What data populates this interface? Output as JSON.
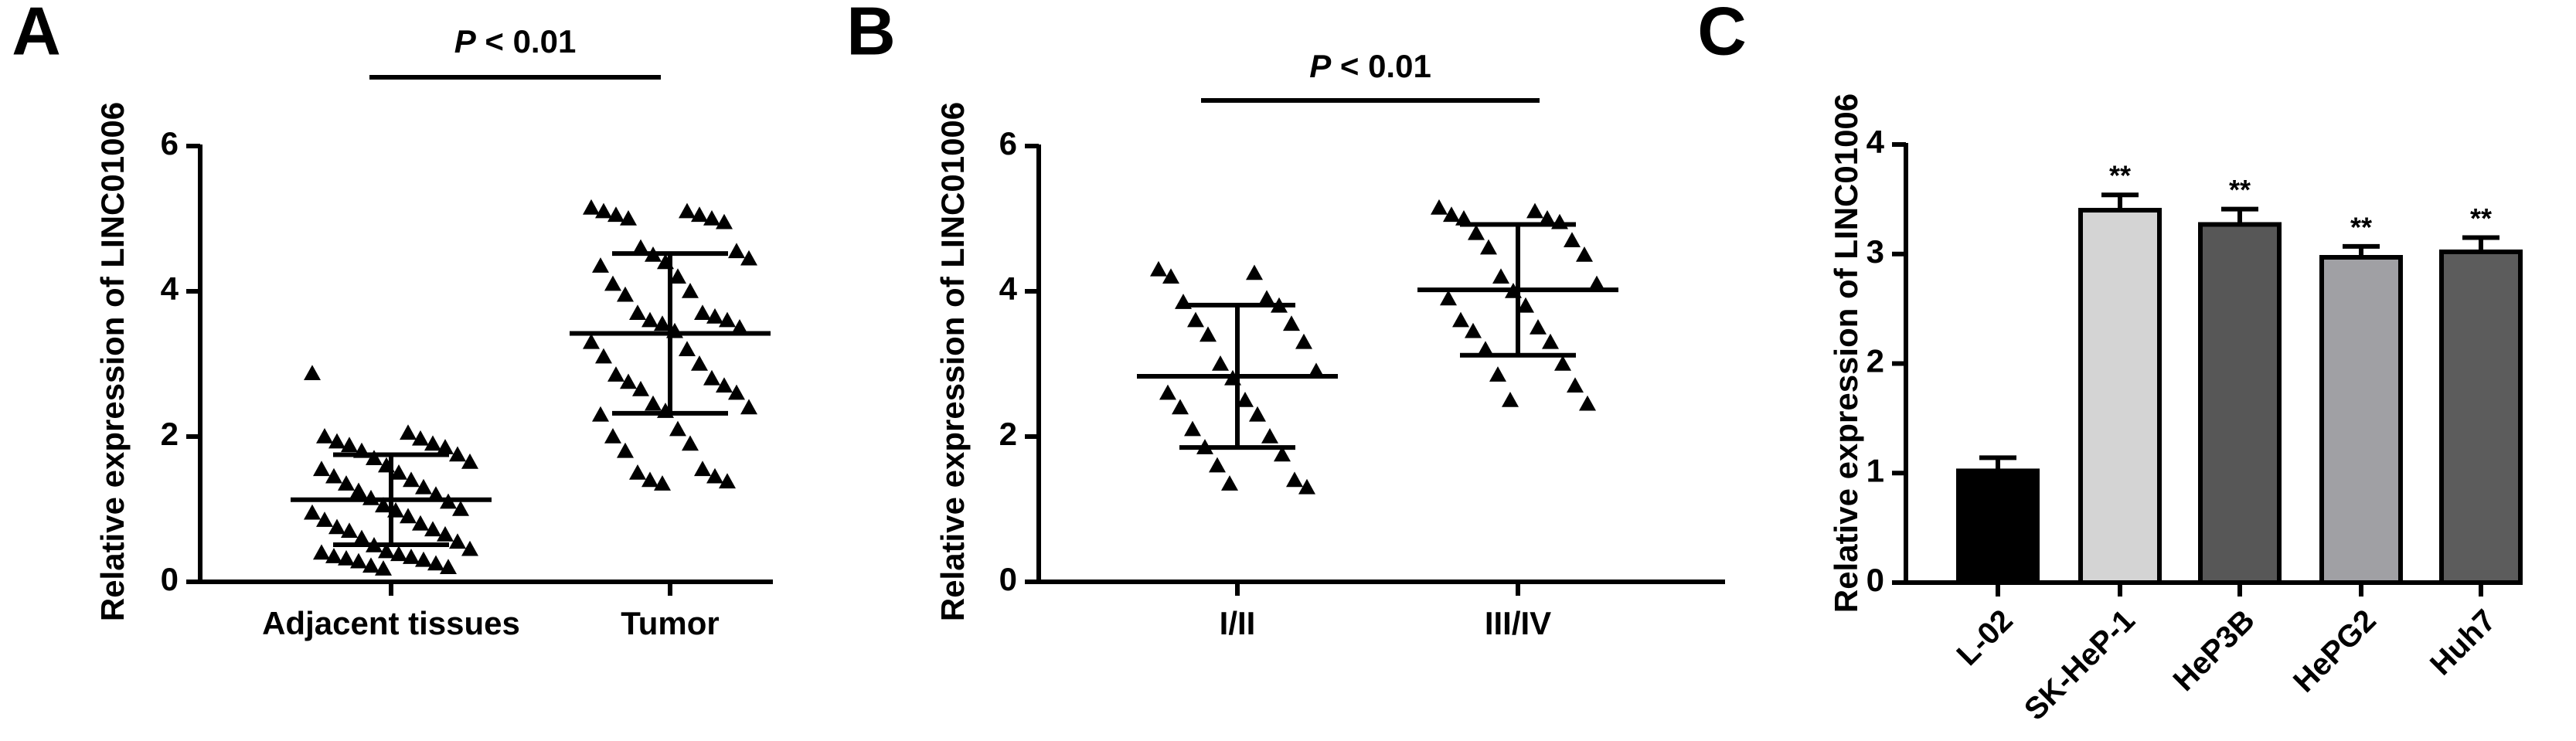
{
  "chart_data": [
    {
      "type": "strip",
      "panel_label": "A",
      "y_label": "Relative expression of LINC01006",
      "annotation": {
        "italic": "P",
        "text": "< 0.01"
      },
      "ylim": [
        0,
        6
      ],
      "yticks": [
        0,
        2,
        4,
        6
      ],
      "color": "#000000",
      "groups": [
        {
          "name": "Adjacent tissues",
          "mean": 1.13,
          "sd": 0.62,
          "values": [
            2.87,
            2.05,
            2.0,
            1.97,
            1.93,
            1.9,
            1.88,
            1.85,
            1.8,
            1.75,
            1.7,
            1.65,
            1.6,
            1.55,
            1.5,
            1.45,
            1.4,
            1.35,
            1.3,
            1.25,
            1.2,
            1.15,
            1.1,
            1.05,
            1.0,
            0.98,
            0.95,
            0.9,
            0.85,
            0.8,
            0.75,
            0.72,
            0.7,
            0.65,
            0.6,
            0.55,
            0.5,
            0.45,
            0.42,
            0.4,
            0.38,
            0.35,
            0.34,
            0.32,
            0.3,
            0.28,
            0.25,
            0.22,
            0.2,
            0.18
          ]
        },
        {
          "name": "Tumor",
          "mean": 3.42,
          "sd": 1.1,
          "values": [
            5.15,
            5.1,
            5.1,
            5.05,
            5.05,
            5.0,
            5.0,
            4.95,
            4.6,
            4.55,
            4.5,
            4.45,
            4.4,
            4.35,
            4.2,
            4.1,
            4.0,
            3.95,
            3.7,
            3.7,
            3.65,
            3.6,
            3.6,
            3.55,
            3.5,
            3.45,
            3.3,
            3.2,
            3.1,
            3.0,
            2.85,
            2.8,
            2.75,
            2.7,
            2.65,
            2.6,
            2.45,
            2.4,
            2.35,
            2.3,
            2.1,
            2.0,
            1.9,
            1.8,
            1.55,
            1.5,
            1.45,
            1.4,
            1.38,
            1.35
          ]
        }
      ]
    },
    {
      "type": "strip",
      "panel_label": "B",
      "y_label": "Relative expression of LINC01006",
      "annotation": {
        "italic": "P",
        "text": "< 0.01"
      },
      "ylim": [
        0,
        6
      ],
      "yticks": [
        0,
        2,
        4,
        6
      ],
      "color": "#000000",
      "groups": [
        {
          "name": "I/II",
          "mean": 2.83,
          "sd": 0.98,
          "values": [
            4.3,
            4.25,
            4.2,
            3.9,
            3.85,
            3.8,
            3.6,
            3.55,
            3.4,
            3.3,
            3.0,
            2.9,
            2.8,
            2.6,
            2.5,
            2.4,
            2.3,
            2.1,
            2.0,
            1.85,
            1.75,
            1.6,
            1.4,
            1.35,
            1.3
          ]
        },
        {
          "name": "III/IV",
          "mean": 4.02,
          "sd": 0.9,
          "values": [
            5.15,
            5.1,
            5.05,
            5.0,
            5.0,
            4.95,
            4.8,
            4.7,
            4.6,
            4.5,
            4.2,
            4.1,
            4.0,
            3.9,
            3.8,
            3.6,
            3.5,
            3.45,
            3.3,
            3.2,
            3.0,
            2.85,
            2.7,
            2.5,
            2.45
          ]
        }
      ]
    },
    {
      "type": "bar",
      "panel_label": "C",
      "y_label": "Relative expression of LINC01006",
      "ylim": [
        0,
        4
      ],
      "yticks": [
        0,
        1,
        2,
        3,
        4
      ],
      "categories": [
        "L-02",
        "SK-HeP-1",
        "HeP3B",
        "HePG2",
        "Huh7"
      ],
      "values": [
        1.02,
        3.4,
        3.27,
        2.97,
        3.02
      ],
      "errors": [
        0.12,
        0.14,
        0.14,
        0.1,
        0.13
      ],
      "colors": [
        "#000000",
        "#d4d4d4",
        "#575757",
        "#a0a0a4",
        "#5c5c5c"
      ],
      "significance": [
        null,
        "**",
        "**",
        "**",
        "**"
      ]
    }
  ]
}
